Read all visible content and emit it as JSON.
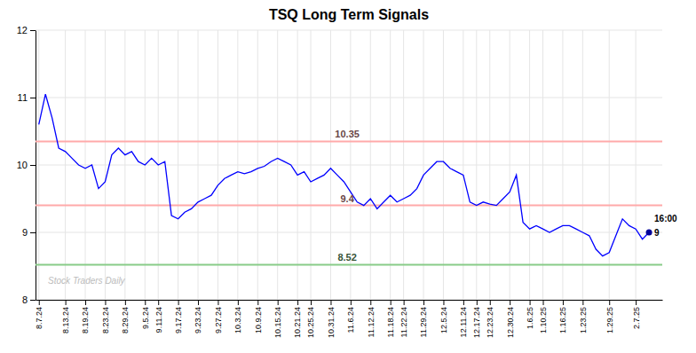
{
  "chart_data": {
    "type": "line",
    "title": "TSQ Long Term Signals",
    "color": "blue",
    "grid": true,
    "ylim": [
      8.0,
      12.0
    ],
    "yticks": [
      8,
      9,
      10,
      11,
      12
    ],
    "categories": [
      "8.7.24",
      null,
      null,
      null,
      "8.13.24",
      null,
      null,
      "8.19.24",
      null,
      null,
      "8.23.24",
      null,
      null,
      "8.29.24",
      null,
      null,
      "9.5.24",
      null,
      "9.11.24",
      null,
      null,
      "9.17.24",
      null,
      null,
      "9.23.24",
      null,
      null,
      "9.27.24",
      null,
      null,
      "10.3.24",
      null,
      null,
      "10.9.24",
      null,
      null,
      "10.15.24",
      null,
      null,
      "10.21.24",
      null,
      "10.25.24",
      null,
      null,
      "10.31.24",
      null,
      null,
      "11.6.24",
      null,
      null,
      "11.12.24",
      null,
      null,
      "11.18.24",
      null,
      "11.22.24",
      null,
      null,
      "11.29.24",
      null,
      null,
      "12.5.24",
      null,
      null,
      "12.11.24",
      null,
      "12.17.24",
      null,
      "12.23.24",
      null,
      null,
      "12.30.24",
      null,
      null,
      "1.6.25",
      null,
      "1.10.25",
      null,
      null,
      "1.16.25",
      null,
      null,
      "1.23.25",
      null,
      null,
      null,
      "1.29.25",
      null,
      null,
      null,
      "2.7.25",
      null,
      null
    ],
    "values": [
      10.6,
      11.05,
      10.7,
      10.25,
      10.2,
      10.1,
      10.0,
      9.95,
      10.0,
      9.65,
      9.75,
      10.15,
      10.25,
      10.15,
      10.2,
      10.05,
      10.0,
      10.1,
      10.0,
      10.05,
      9.25,
      9.2,
      9.3,
      9.35,
      9.45,
      9.5,
      9.55,
      9.7,
      9.8,
      9.85,
      9.9,
      9.87,
      9.9,
      9.95,
      9.98,
      10.05,
      10.1,
      10.05,
      10.0,
      9.85,
      9.9,
      9.75,
      9.8,
      9.85,
      9.95,
      9.85,
      9.75,
      9.6,
      9.45,
      9.4,
      9.5,
      9.35,
      9.45,
      9.55,
      9.45,
      9.5,
      9.55,
      9.65,
      9.85,
      9.95,
      10.05,
      10.05,
      9.95,
      9.9,
      9.85,
      9.45,
      9.4,
      9.45,
      9.42,
      9.4,
      9.5,
      9.6,
      9.85,
      9.15,
      9.05,
      9.1,
      9.05,
      9.0,
      9.05,
      9.1,
      9.1,
      9.05,
      9.0,
      8.95,
      8.75,
      8.65,
      8.7,
      8.95,
      9.2,
      9.1,
      9.05,
      8.9,
      9.0
    ],
    "reference_lines": [
      {
        "value": 10.35,
        "label": "10.35",
        "color": "#ffaaaa"
      },
      {
        "value": 9.4,
        "label": "9.4",
        "color": "#ffaaaa"
      },
      {
        "value": 8.52,
        "label": "8.52",
        "color": "#88cc88"
      }
    ],
    "last_point": {
      "color": "#000099",
      "labels": [
        "16:00",
        "9"
      ]
    },
    "watermark": "Stock Traders Daily"
  }
}
